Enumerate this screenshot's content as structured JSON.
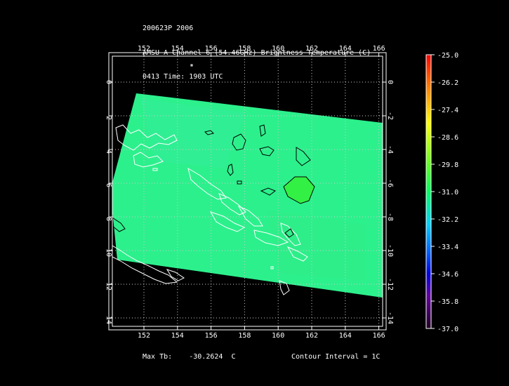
{
  "header": {
    "line1": "200623P 2006",
    "line2": "AMSU-A Channel 6 (54.46GHz) Brightness Temperature (C)",
    "line3": "0413 Time: 1903 UTC",
    "line4": "NOAA-15"
  },
  "map": {
    "lon_ticks": [
      "152",
      "154",
      "156",
      "158",
      "160",
      "162",
      "164",
      "166"
    ],
    "lat_ticks": [
      "0",
      "-2",
      "-4",
      "-6",
      "-8",
      "-10",
      "-12",
      "-14"
    ],
    "field_color": "#2cf08c",
    "coast_color": "#ffffff",
    "contour_color": "#000000"
  },
  "colorbar": {
    "labels": [
      "-25.0",
      "-26.2",
      "-27.4",
      "-28.6",
      "-29.8",
      "-31.0",
      "-32.2",
      "-33.4",
      "-34.6",
      "-35.8",
      "-37.0"
    ]
  },
  "footer": {
    "max_label": "Max Tb:",
    "max_value": "-30.2624",
    "max_unit": "C",
    "contour_label": "Contour Interval = 1C"
  }
}
